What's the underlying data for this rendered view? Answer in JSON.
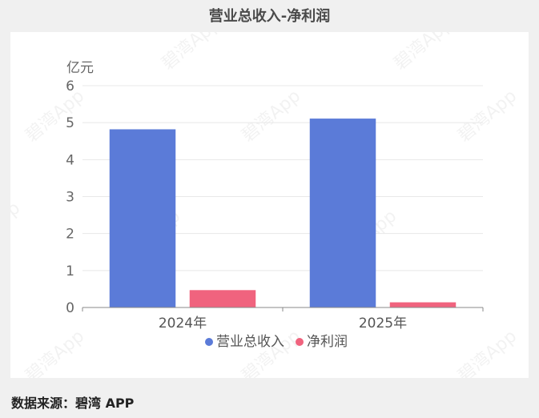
{
  "chart_data": {
    "type": "bar",
    "title": "营业总收入-净利润",
    "ylabel": "亿元",
    "categories": [
      "2024年",
      "2025年"
    ],
    "series": [
      {
        "name": "营业总收入",
        "values": [
          4.82,
          5.11
        ],
        "color": "#5b7bd8"
      },
      {
        "name": "净利润",
        "values": [
          0.47,
          0.14
        ],
        "color": "#f0637e"
      }
    ],
    "ylim": [
      0,
      6
    ],
    "yticks": [
      "0",
      "1",
      "2",
      "3",
      "4",
      "5",
      "6"
    ],
    "grid": true,
    "legend_position": "bottom-center"
  },
  "footer": {
    "source": "数据来源：碧湾 APP"
  },
  "watermark": "碧湾App"
}
